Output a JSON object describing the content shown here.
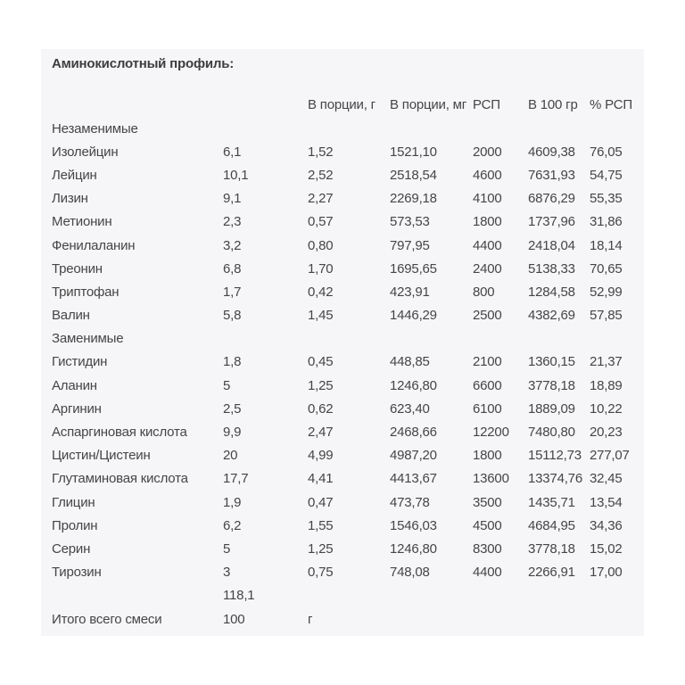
{
  "title": "Аминокислотный профиль:",
  "colors": {
    "panel_bg": "#f6f6f9",
    "text": "#454545",
    "title_text": "#3d3d3d",
    "page_bg": "#ffffff"
  },
  "table": {
    "headers": [
      "",
      "",
      "В порции, г",
      "В порции, мг",
      "РСП",
      "В 100 гр",
      "% РСП"
    ],
    "rows": [
      {
        "cells": [
          "Незаменимые",
          "",
          "",
          "",
          "",
          "",
          ""
        ]
      },
      {
        "cells": [
          "Изолейцин",
          "6,1",
          "1,52",
          "1521,10",
          "2000",
          "4609,38",
          "76,05"
        ]
      },
      {
        "cells": [
          "Лейцин",
          "10,1",
          "2,52",
          "2518,54",
          "4600",
          "7631,93",
          "54,75"
        ]
      },
      {
        "cells": [
          "Лизин",
          "9,1",
          "2,27",
          "2269,18",
          "4100",
          "6876,29",
          "55,35"
        ]
      },
      {
        "cells": [
          "Метионин",
          "2,3",
          "0,57",
          "573,53",
          "1800",
          "1737,96",
          "31,86"
        ]
      },
      {
        "cells": [
          "Фенилаланин",
          "3,2",
          "0,80",
          "797,95",
          "4400",
          "2418,04",
          "18,14"
        ]
      },
      {
        "cells": [
          "Треонин",
          "6,8",
          "1,70",
          "1695,65",
          "2400",
          "5138,33",
          "70,65"
        ]
      },
      {
        "cells": [
          "Триптофан",
          "1,7",
          "0,42",
          "423,91",
          "800",
          "1284,58",
          "52,99"
        ]
      },
      {
        "cells": [
          "Валин",
          "5,8",
          "1,45",
          "1446,29",
          "2500",
          "4382,69",
          "57,85"
        ]
      },
      {
        "cells": [
          "Заменимые",
          "",
          "",
          "",
          "",
          "",
          ""
        ]
      },
      {
        "cells": [
          "Гистидин",
          "1,8",
          "0,45",
          "448,85",
          "2100",
          "1360,15",
          "21,37"
        ]
      },
      {
        "cells": [
          "Аланин",
          "5",
          "1,25",
          "1246,80",
          "6600",
          "3778,18",
          "18,89"
        ]
      },
      {
        "cells": [
          "Аргинин",
          "2,5",
          "0,62",
          "623,40",
          "6100",
          "1889,09",
          "10,22"
        ]
      },
      {
        "cells": [
          "Аспаргиновая кислота",
          "9,9",
          "2,47",
          "2468,66",
          "12200",
          "7480,80",
          "20,23"
        ]
      },
      {
        "cells": [
          "Цистин/Цистеин",
          "20",
          "4,99",
          "4987,20",
          "1800",
          "15112,73",
          "277,07"
        ]
      },
      {
        "cells": [
          "Глутаминовая кислота",
          "17,7",
          "4,41",
          "4413,67",
          "13600",
          "13374,76",
          "32,45"
        ]
      },
      {
        "cells": [
          "Глицин",
          "1,9",
          "0,47",
          "473,78",
          "3500",
          "1435,71",
          "13,54"
        ]
      },
      {
        "cells": [
          "Пролин",
          "6,2",
          "1,55",
          "1546,03",
          "4500",
          "4684,95",
          "34,36"
        ]
      },
      {
        "cells": [
          "Серин",
          "5",
          "1,25",
          "1246,80",
          "8300",
          "3778,18",
          "15,02"
        ]
      },
      {
        "cells": [
          "Тирозин",
          "3",
          "0,75",
          "748,08",
          "4400",
          "2266,91",
          "17,00"
        ]
      },
      {
        "cells": [
          "",
          "118,1",
          "",
          "",
          "",
          "",
          ""
        ]
      },
      {
        "cells": [
          "Итого всего смеси",
          "100",
          "г",
          "",
          "",
          "",
          ""
        ]
      }
    ]
  }
}
